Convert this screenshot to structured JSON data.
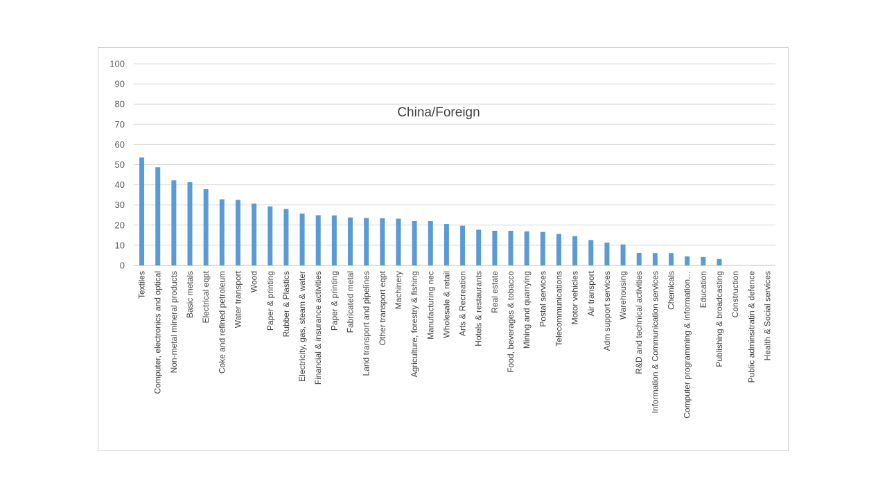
{
  "chart_data": {
    "type": "bar",
    "title": "China/Foreign",
    "xlabel": "",
    "ylabel": "",
    "ylim": [
      0,
      100
    ],
    "yticks": [
      0,
      10,
      20,
      30,
      40,
      50,
      60,
      70,
      80,
      90,
      100
    ],
    "grid": true,
    "legend": "none",
    "bar_color": "#5b9bd5",
    "grid_color": "#d9d9d9",
    "categories": [
      "Textiles",
      "Computer, electronics and optical",
      "Non-metal mineral products",
      "Basic metals",
      "Electrical eqpt",
      "Coke and refined petroleum",
      "Water transport",
      "Wood",
      "Paper & printing",
      "Rubber & Plastics",
      "Electricity, gas, steam & water",
      "Financial & insurance activities",
      "Paper & printing",
      "Fabricated metal",
      "Land transport and pipelines",
      "Other transport eqpt",
      "Machinery",
      "Agriculture, forestry & fishing",
      "Manufacturing nec",
      "Wholesale & retail",
      "Arts & Recreation",
      "Hotels & restaurants",
      "Real estate",
      "Food, beverages & tobacco",
      "Mining and quarrying",
      "Postal services",
      "Telecommunications",
      "Motor vehicles",
      "Air transport",
      "Adm support services",
      "Warehousing",
      "R&D and technical activities",
      "Information & Communication services",
      "Chemicals",
      "Computer programming & information…",
      "Education",
      "Publishing & broadcasting",
      "Construction",
      "Public adminsitratin & defence",
      "Health & Social services"
    ],
    "values": [
      53.5,
      48.7,
      42.2,
      41.3,
      37.8,
      32.8,
      32.5,
      30.7,
      29.3,
      28.0,
      25.7,
      24.9,
      24.8,
      23.8,
      23.5,
      23.4,
      23.2,
      22.0,
      22.0,
      20.6,
      19.7,
      17.7,
      17.2,
      17.2,
      16.9,
      16.6,
      15.6,
      14.5,
      12.6,
      11.3,
      10.4,
      6.2,
      6.1,
      6.1,
      4.5,
      4.2,
      3.2,
      0,
      0,
      0
    ]
  }
}
